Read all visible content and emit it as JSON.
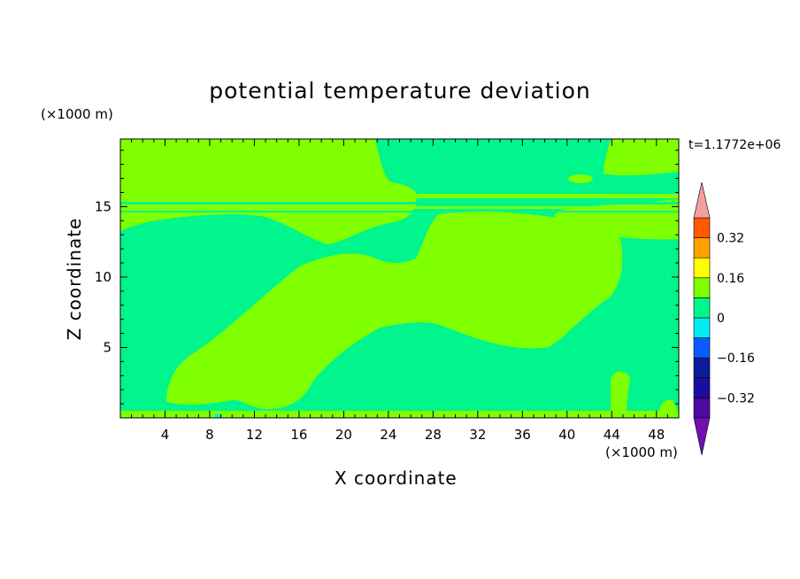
{
  "chart_data": {
    "type": "heatmap",
    "title": "potential temperature deviation",
    "xlabel": "X coordinate",
    "ylabel": "Z coordinate",
    "x_unit": "(×1000 m)",
    "y_unit": "(×1000 m)",
    "time_label": "t=1.1772e+06",
    "xlim": [
      0,
      50
    ],
    "ylim": [
      0,
      19.8
    ],
    "x_ticks": [
      4,
      8,
      12,
      16,
      20,
      24,
      28,
      32,
      36,
      40,
      44,
      48
    ],
    "y_ticks": [
      5,
      10,
      15
    ],
    "colorbar": {
      "levels": [
        -0.4,
        -0.32,
        -0.24,
        -0.16,
        -0.08,
        0,
        0.08,
        0.16,
        0.24,
        0.32,
        0.4
      ],
      "tick_labels": [
        "0.32",
        "0.16",
        "0",
        "−0.16",
        "−0.32"
      ],
      "tick_values": [
        0.32,
        0.16,
        0,
        -0.16,
        -0.32
      ],
      "colors": [
        "#4b0aa0",
        "#1a0f9c",
        "#0a1e9a",
        "#0a5aff",
        "#00ecf5",
        "#00f58c",
        "#80ff00",
        "#ffff00",
        "#ffa000",
        "#ff5a00",
        "#ff2020",
        "#f5a0a0"
      ],
      "under_color": "#7010b0",
      "over_color": "#f5a0a0"
    },
    "field": {
      "background_level": "-0.08 to 0 (#00f58c)",
      "positive_regions": [
        {
          "desc": "upper layer z 13-19.8 km, x 0-23",
          "x": [
            0,
            23.5
          ],
          "z": [
            13,
            19.8
          ]
        },
        {
          "desc": "upper right region x 43.5-50, z 14.5-19.8",
          "x": [
            43.5,
            50
          ],
          "z": [
            14.5,
            19.8
          ]
        },
        {
          "desc": "diagonal tongue from x 4 z 1 rising to x 45 z 14",
          "x": [
            4,
            45
          ],
          "z": [
            1,
            14
          ]
        },
        {
          "desc": "stratified bands near z 15-16 across full width",
          "x": [
            0,
            50
          ],
          "z": [
            14.8,
            16.2
          ]
        },
        {
          "desc": "thin surface layer",
          "x": [
            0,
            50
          ],
          "z": [
            0,
            0.6
          ]
        }
      ]
    }
  }
}
